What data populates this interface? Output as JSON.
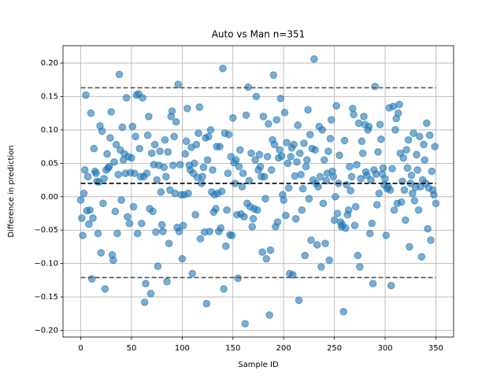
{
  "chart_data": {
    "type": "scatter",
    "title": "Auto vs Man n=351",
    "xlabel": "Sample ID",
    "ylabel": "Difference in prediction",
    "color": "#1f77b4",
    "grid": true,
    "xlim": [
      -17.5,
      367.5
    ],
    "xticks": [
      0,
      50,
      100,
      150,
      200,
      250,
      300,
      350
    ],
    "ylim": [
      -0.21,
      0.226
    ],
    "yticks": [
      {
        "value": -0.2,
        "label": "−0.20"
      },
      {
        "value": -0.15,
        "label": "−0.15"
      },
      {
        "value": -0.1,
        "label": "−0.10"
      },
      {
        "value": -0.05,
        "label": "−0.05"
      },
      {
        "value": 0,
        "label": "0.00"
      },
      {
        "value": 0.05,
        "label": "0.05"
      },
      {
        "value": 0.1,
        "label": "0.10"
      },
      {
        "value": 0.15,
        "label": "0.15"
      },
      {
        "value": 0.2,
        "label": "0.20"
      }
    ],
    "hlines": [
      {
        "value": 0.163,
        "color": "#555555"
      },
      {
        "value": 0.02,
        "color": "#000000"
      },
      {
        "value": -0.121,
        "color": "#555555"
      }
    ],
    "x": [
      0,
      1,
      2,
      3,
      4,
      5,
      6,
      7,
      8,
      9,
      10,
      11,
      12,
      13,
      14,
      15,
      16,
      17,
      18,
      19,
      20,
      21,
      22,
      23,
      24,
      25,
      26,
      27,
      28,
      29,
      30,
      31,
      32,
      33,
      34,
      35,
      36,
      37,
      38,
      39,
      40,
      41,
      42,
      43,
      44,
      45,
      46,
      47,
      48,
      49,
      50,
      51,
      52,
      53,
      54,
      55,
      56,
      57,
      58,
      59,
      60,
      61,
      62,
      63,
      64,
      65,
      66,
      67,
      68,
      69,
      70,
      71,
      72,
      73,
      74,
      75,
      76,
      77,
      78,
      79,
      80,
      81,
      82,
      83,
      84,
      85,
      86,
      87,
      88,
      89,
      90,
      91,
      92,
      93,
      94,
      95,
      96,
      97,
      98,
      99,
      100,
      101,
      102,
      103,
      104,
      105,
      106,
      107,
      108,
      109,
      110,
      111,
      112,
      113,
      114,
      115,
      116,
      117,
      118,
      119,
      120,
      121,
      122,
      123,
      124,
      125,
      126,
      127,
      128,
      129,
      130,
      131,
      132,
      133,
      134,
      135,
      136,
      137,
      138,
      139,
      140,
      141,
      142,
      143,
      144,
      145,
      146,
      147,
      148,
      149,
      150,
      151,
      152,
      153,
      154,
      155,
      156,
      157,
      158,
      159,
      160,
      161,
      162,
      163,
      164,
      165,
      166,
      167,
      168,
      169,
      170,
      171,
      172,
      173,
      174,
      175,
      176,
      177,
      178,
      179,
      180,
      181,
      182,
      183,
      184,
      185,
      186,
      187,
      188,
      189,
      190,
      191,
      192,
      193,
      194,
      195,
      196,
      197,
      198,
      199,
      200,
      201,
      202,
      203,
      204,
      205,
      206,
      207,
      208,
      209,
      210,
      211,
      212,
      213,
      214,
      215,
      216,
      217,
      218,
      219,
      220,
      221,
      222,
      223,
      224,
      225,
      226,
      227,
      228,
      229,
      230,
      231,
      232,
      233,
      234,
      235,
      236,
      237,
      238,
      239,
      240,
      241,
      242,
      243,
      244,
      245,
      246,
      247,
      248,
      249,
      250,
      251,
      252,
      253,
      254,
      255,
      256,
      257,
      258,
      259,
      260,
      261,
      262,
      263,
      264,
      265,
      266,
      267,
      268,
      269,
      270,
      271,
      272,
      273,
      274,
      275,
      276,
      277,
      278,
      279,
      280,
      281,
      282,
      283,
      284,
      285,
      286,
      287,
      288,
      289,
      290,
      291,
      292,
      293,
      294,
      295,
      296,
      297,
      298,
      299,
      300,
      301,
      302,
      303,
      304,
      305,
      306,
      307,
      308,
      309,
      310,
      311,
      312,
      313,
      314,
      315,
      316,
      317,
      318,
      319,
      320,
      321,
      322,
      323,
      324,
      325,
      326,
      327,
      328,
      329,
      330,
      331,
      332,
      333,
      334,
      335,
      336,
      337,
      338,
      339,
      340,
      341,
      342,
      343,
      344,
      345,
      346,
      347,
      348,
      349,
      350
    ],
    "values": [
      -0.005,
      -0.032,
      -0.058,
      0.005,
      0.04,
      0.152,
      -0.021,
      0.03,
      -0.041,
      -0.02,
      0.125,
      -0.123,
      -0.032,
      0.072,
      0.038,
      0.035,
      0.023,
      -0.055,
      0.022,
      0.106,
      -0.084,
      0.098,
      -0.01,
      0.027,
      -0.138,
      0.04,
      0.064,
      0.043,
      0.045,
      0.088,
      0.127,
      -0.087,
      -0.095,
      0.052,
      -0.022,
      0.078,
      -0.055,
      0.033,
      0.183,
      0.07,
      -0.005,
      0.104,
      0.055,
      0.064,
      0.035,
      0.148,
      -0.03,
      0.06,
      -0.04,
      0.036,
      0.058,
      0.105,
      -0.015,
      0.035,
      0.09,
      0.152,
      -0.055,
      0.154,
      0.072,
      0.03,
      -0.04,
      0.148,
      0.03,
      -0.158,
      -0.13,
      0.035,
      0.092,
      0.12,
      -0.018,
      -0.145,
      0.065,
      -0.022,
      0.048,
      0.078,
      -0.053,
      0.025,
      -0.104,
      0.047,
      0.068,
      0.007,
      -0.042,
      -0.052,
      0.044,
      0.085,
      0.03,
      -0.127,
      0.067,
      -0.07,
      0.01,
      0.12,
      0.128,
      0.047,
      0.09,
      0.005,
      0.112,
      -0.046,
      0.168,
      -0.052,
      0.048,
      0.003,
      -0.093,
      -0.043,
      0.003,
      0.064,
      0.083,
      0.132,
      0.005,
      0.047,
      0.04,
      0.074,
      -0.115,
      0.035,
      0.05,
      -0.027,
      0.078,
      0.029,
      0.095,
      0.134,
      -0.063,
      0.02,
      0.03,
      0.044,
      -0.053,
      0.088,
      -0.16,
      0.055,
      0.09,
      -0.052,
      0.1,
      0.007,
      0.04,
      -0.023,
      0.003,
      -0.018,
      0.075,
      0.005,
      -0.052,
      0.075,
      -0.047,
      0.008,
      0.192,
      -0.138,
      0.095,
      -0.074,
      -0.02,
      0.035,
      0.093,
      -0.057,
      0.06,
      -0.058,
      0.118,
      0.051,
      0.02,
      0.055,
      -0.027,
      -0.122,
      0.045,
      0.07,
      -0.026,
      0.015,
      0.035,
      -0.03,
      -0.19,
      0.122,
      -0.01,
      0.164,
      0.024,
      -0.015,
      0.065,
      -0.045,
      -0.033,
      -0.018,
      0.055,
      0.15,
      -0.02,
      0.04,
      0.063,
      0.045,
      0.03,
      -0.083,
      0.12,
      0.03,
      -0.003,
      -0.093,
      0.06,
      0.109,
      -0.177,
      -0.08,
      0.04,
      0.085,
      0.182,
      0.078,
      -0.045,
      0.115,
      -0.038,
      0.058,
      0.07,
      0.147,
      0.061,
      0.003,
      -0.005,
      0.126,
      -0.028,
      0.081,
      0.05,
      0.013,
      -0.115,
      0.06,
      0.073,
      -0.117,
      0.078,
      0.031,
      -0.033,
      0.052,
      0.107,
      -0.155,
      0.065,
      0.033,
      -0.02,
      0.012,
      0.08,
      -0.088,
      0.045,
      0.055,
      0.13,
      -0.003,
      0.093,
      -0.065,
      0.072,
      0.025,
      0.206,
      0.07,
      0.02,
      -0.072,
      0.015,
      0.105,
      0.03,
      -0.105,
      0.1,
      -0.01,
      0.055,
      -0.07,
      0.024,
      0.035,
      0.068,
      -0.095,
      0.087,
      0.115,
      0.038,
      0.03,
      -0.035,
      0.0,
      0.136,
      -0.025,
      0.02,
      0.062,
      -0.038,
      -0.045,
      -0.042,
      -0.172,
      0.084,
      -0.047,
      0.018,
      -0.027,
      -0.02,
      0.045,
      0.009,
      0.03,
      0.132,
      0.123,
      -0.043,
      -0.015,
      0.048,
      -0.088,
      0.11,
      -0.105,
      0.027,
      0.083,
      0.065,
      0.12,
      0.108,
      0.037,
      0.032,
      0.1,
      0.105,
      -0.055,
      0.025,
      -0.04,
      -0.13,
      0.04,
      0.165,
      0.034,
      -0.012,
      0.067,
      0.005,
      0.108,
      0.086,
      0.034,
      0.043,
      0.018,
      0.027,
      -0.058,
      0.012,
      0.015,
      0.133,
      0.01,
      -0.133,
      0.042,
      0.135,
      -0.02,
      0.1,
      0.117,
      -0.01,
      0.125,
      0.138,
      0.065,
      -0.008,
      0.023,
      0.058,
      0.01,
      -0.035,
      0.07,
      0.043,
      0.085,
      -0.075,
      0.02,
      0.032,
      0.005,
      0.095,
      -0.006,
      0.014,
      0.063,
      0.04,
      -0.02,
      0.09,
      0.015,
      -0.09,
      0.025,
      0.078,
      0.055,
      0.02,
      0.11,
      -0.048,
      0.013,
      0.092,
      -0.065,
      0.038,
      0.01,
      0.003,
      0.075,
      -0.01
    ]
  }
}
